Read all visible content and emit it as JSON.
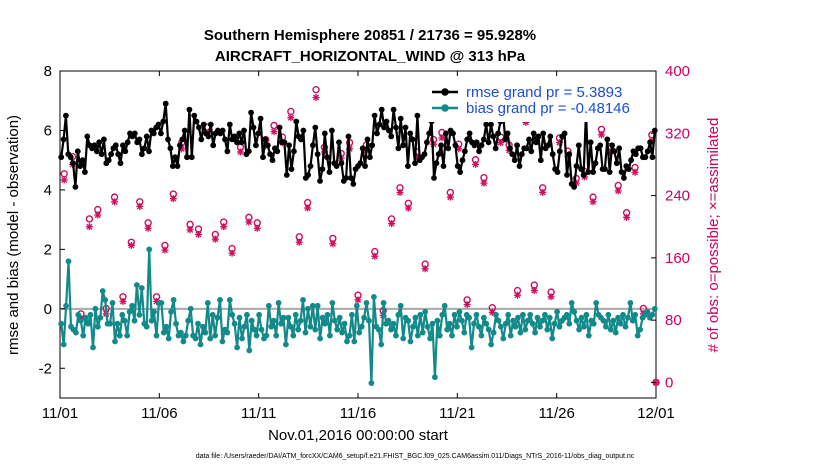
{
  "chart_data": {
    "type": "line",
    "title_line1": "Southern Hemisphere 20851 / 21736 = 95.928%",
    "title_line2": "AIRCRAFT_HORIZONTAL_WIND @ 313 hPa",
    "xlabel": "Nov.01,2016 00:00:00 start",
    "ylabel_left": "rmse and bias (model - observation)",
    "ylabel_right": "# of obs: o=possible; ×=assimilated",
    "footer": "data file: /Users/raeder/DAI/ATM_forcXX/CAM6_setup/f.e21.FHIST_BGC.f09_025.CAM6assim.011/Diags_NTrS_2016-11/obs_diag_output.nc",
    "x_tick_labels": [
      "11/01",
      "11/06",
      "11/11",
      "11/16",
      "11/21",
      "11/26",
      "12/01"
    ],
    "x_tick_values": [
      0,
      5,
      10,
      15,
      20,
      25,
      30
    ],
    "xlim": [
      0,
      30
    ],
    "ylim_left": [
      -3,
      8
    ],
    "yticks_left": [
      -2,
      0,
      2,
      4,
      6,
      8
    ],
    "ylim_right": [
      -20,
      400
    ],
    "yticks_right": [
      0,
      80,
      160,
      240,
      320,
      400
    ],
    "colors": {
      "rmse": "#000000",
      "bias": "#138a8a",
      "obs": "#cc1060",
      "zero": "#aaaaaa",
      "legend_text": "#1a4fd6"
    },
    "series": [
      {
        "name": "rmse grand pr = 5.3893",
        "axis": "left",
        "values": [
          5.1,
          5.7,
          6.5,
          5.2,
          5.1,
          4.9,
          4.1,
          5.3,
          4.8,
          5.0,
          4.6,
          5.8,
          5.5,
          5.4,
          5.5,
          5.3,
          5.6,
          5.2,
          5.7,
          4.9,
          5.0,
          5.2,
          5.4,
          5.5,
          5.2,
          4.9,
          5.5,
          5.3,
          5.6,
          5.9,
          5.8,
          5.9,
          5.6,
          5.7,
          5.2,
          5.4,
          5.8,
          5.3,
          6.0,
          5.9,
          6.1,
          6.2,
          5.9,
          6.3,
          6.9,
          5.7,
          5.4,
          4.8,
          5.1,
          4.8,
          5.5,
          5.7,
          6.0,
          5.1,
          6.7,
          5.1,
          6.5,
          6.3,
          6.1,
          5.7,
          6.2,
          5.9,
          5.8,
          6.2,
          5.5,
          5.9,
          6.0,
          5.9,
          6.0,
          5.7,
          5.3,
          6.2,
          5.7,
          5.8,
          5.6,
          5.9,
          5.6,
          6.0,
          5.2,
          5.3,
          6.6,
          6.1,
          5.5,
          5.9,
          6.4,
          5.1,
          5.7,
          5.5,
          5.2,
          5.0,
          5.4,
          5.3,
          6.1,
          5.6,
          5.6,
          4.5,
          5.5,
          4.7,
          5.3,
          6.3,
          5.8,
          5.7,
          6.0,
          4.4,
          4.5,
          4.8,
          5.5,
          6.1,
          5.2,
          4.3,
          4.7,
          5.9,
          5.1,
          4.6,
          6.0,
          4.9,
          4.8,
          5.6,
          4.9,
          4.3,
          4.4,
          5.8,
          4.4,
          4.2,
          4.7,
          4.8,
          4.9,
          5.4,
          4.8,
          5.7,
          5.1,
          5.5,
          6.5,
          5.9,
          6.2,
          6.7,
          6.1,
          6.3,
          6.0,
          5.8,
          6.7,
          6.1,
          5.4,
          6.4,
          5.5,
          6.1,
          4.8,
          5.9,
          5.7,
          4.9,
          6.5,
          5.0,
          5.1,
          5.2,
          5.6,
          5.9,
          6.3,
          4.4,
          4.9,
          5.2,
          5.5,
          4.8,
          5.9,
          5.4,
          6.0,
          5.9,
          5.5,
          4.8,
          4.6,
          5.0,
          5.3,
          5.7,
          5.9,
          5.6,
          5.5,
          5.6,
          5.3,
          5.5,
          5.7,
          6.2,
          5.6,
          6.2,
          5.8,
          5.4,
          5.9,
          6.3,
          6.7,
          5.7,
          5.9,
          5.4,
          5.2,
          5.0,
          5.5,
          4.8,
          5.2,
          5.4,
          5.4,
          5.7,
          5.3,
          5.9,
          5.6,
          5.8,
          5.0,
          5.9,
          5.4,
          5.5,
          5.8,
          5.2,
          4.7,
          4.6,
          5.3,
          5.8,
          5.9,
          4.5,
          5.2,
          4.2,
          4.1,
          4.8,
          5.5,
          4.7,
          4.5,
          6.6,
          4.6,
          5.6,
          4.6,
          4.9,
          5.4,
          5.5,
          4.7,
          4.7,
          5.7,
          4.6,
          5.5,
          5.3,
          4.9,
          5.4,
          4.6,
          4.4,
          4.8,
          4.7,
          5.0,
          5.3,
          5.2,
          5.4,
          5.4,
          5.1,
          5.1,
          5.3,
          5.6,
          5.1,
          6.0
        ]
      },
      {
        "name": "bias grand pr = -0.48146",
        "axis": "left",
        "values": [
          -0.5,
          -1.2,
          0.1,
          1.6,
          -0.6,
          -0.7,
          -0.8,
          -0.2,
          -0.4,
          -0.9,
          -0.3,
          -0.5,
          -0.2,
          -1.3,
          0.0,
          -0.6,
          -0.3,
          0.6,
          0.3,
          -0.5,
          -0.5,
          0.2,
          -1.1,
          -0.5,
          -0.9,
          -0.2,
          -0.4,
          -0.9,
          -0.1,
          0.1,
          -0.4,
          0.8,
          -0.2,
          0.7,
          -0.5,
          -0.6,
          2.0,
          -0.4,
          -0.1,
          -0.9,
          0.2,
          0.2,
          -0.8,
          -0.6,
          -1.0,
          -0.1,
          0.3,
          -0.5,
          -0.9,
          -0.8,
          -1.1,
          -0.9,
          -0.4,
          0.0,
          -0.9,
          -1.0,
          -0.5,
          -1.2,
          -0.6,
          -0.8,
          0.2,
          -1.0,
          -0.2,
          -0.9,
          -0.3,
          0.3,
          -1.1,
          -0.7,
          -0.8,
          0.3,
          -0.2,
          -0.5,
          -1.3,
          -0.3,
          -1.0,
          -0.6,
          -0.2,
          -1.4,
          -0.4,
          -0.7,
          -0.9,
          -0.2,
          -0.7,
          -1.0,
          -0.9,
          0.1,
          -0.6,
          -0.4,
          -0.9,
          0.2,
          -0.5,
          -0.3,
          -1.2,
          -0.3,
          -0.6,
          -0.9,
          -0.2,
          -0.7,
          -0.4,
          0.3,
          -0.8,
          0.0,
          -0.6,
          0.1,
          -0.7,
          0.1,
          -1.0,
          -0.3,
          -0.5,
          -0.2,
          -0.9,
          0.2,
          -0.4,
          -0.7,
          -0.3,
          -0.8,
          -0.5,
          -1.1,
          -0.9,
          -0.2,
          -1.1,
          0.1,
          -0.8,
          -0.6,
          -0.3,
          0.2,
          -0.4,
          -2.5,
          0.4,
          -0.6,
          -0.7,
          -1.2,
          0.2,
          -0.5,
          -0.4,
          -0.7,
          -0.5,
          -0.9,
          -0.2,
          0.1,
          -1.0,
          -0.3,
          -0.4,
          -1.1,
          -0.6,
          -0.3,
          -0.9,
          -0.2,
          -0.8,
          -0.1,
          -0.6,
          -1.0,
          -0.5,
          -2.3,
          -0.4,
          -0.9,
          -0.2,
          0.1,
          -0.7,
          -0.5,
          -0.9,
          -0.2,
          -0.6,
          -0.1,
          -0.4,
          -0.8,
          -0.2,
          -0.3,
          -1.3,
          -0.5,
          -0.2,
          -0.6,
          -0.9,
          -0.3,
          -0.5,
          -0.7,
          -1.2,
          -0.8,
          -0.2,
          -0.4,
          -0.6,
          -1.0,
          -0.5,
          -0.2,
          -0.9,
          -0.4,
          -0.6,
          -0.3,
          -0.8,
          -0.2,
          -0.7,
          -0.4,
          -0.2,
          -0.5,
          -0.8,
          -0.3,
          -0.6,
          -0.4,
          -0.2,
          -0.7,
          -0.3,
          -1.0,
          -0.5,
          -0.1,
          -0.6,
          -0.4,
          -0.3,
          -0.2,
          -0.5,
          0.2,
          -0.1,
          -0.4,
          -0.7,
          -0.3,
          -0.6,
          -0.2,
          -0.9,
          -0.4,
          -0.5,
          0.2,
          -0.2,
          -0.3,
          -0.4,
          -0.6,
          -0.2,
          -0.7,
          -0.4,
          -0.8,
          -0.3,
          -0.5,
          -0.2,
          -0.6,
          -0.3,
          0.2,
          -0.4,
          -0.2,
          -0.9,
          -0.7,
          -0.3,
          -0.2,
          -0.1,
          -0.3,
          -0.2,
          0.0
        ]
      }
    ],
    "possible_counts": [
      268,
      290,
      88,
      210,
      222,
      95,
      238,
      110,
      180,
      232,
      205,
      110,
      176,
      242,
      308,
      203,
      197,
      328,
      190,
      206,
      172,
      302,
      212,
      205,
      312,
      330,
      315,
      348,
      187,
      231,
      376,
      302,
      185,
      294,
      308,
      112,
      305,
      168,
      92,
      210,
      250,
      230,
      296,
      152,
      312,
      321,
      244,
      306,
      106,
      286,
      263,
      96,
      315,
      305,
      118,
      340,
      125,
      250,
      116,
      314,
      297,
      262,
      271,
      238,
      325,
      303,
      253,
      218,
      276,
      95,
      318
    ],
    "assimilated_counts": [
      260,
      280,
      82,
      200,
      215,
      88,
      232,
      104,
      176,
      226,
      198,
      104,
      170,
      236,
      300,
      196,
      190,
      320,
      184,
      200,
      166,
      296,
      206,
      198,
      304,
      322,
      308,
      340,
      180,
      224,
      366,
      296,
      178,
      288,
      300,
      106,
      298,
      162,
      86,
      204,
      244,
      224,
      290,
      146,
      306,
      314,
      238,
      300,
      100,
      280,
      256,
      90,
      308,
      298,
      112,
      334,
      118,
      244,
      110,
      308,
      290,
      256,
      264,
      232,
      318,
      296,
      246,
      212,
      270,
      88,
      310
    ]
  }
}
